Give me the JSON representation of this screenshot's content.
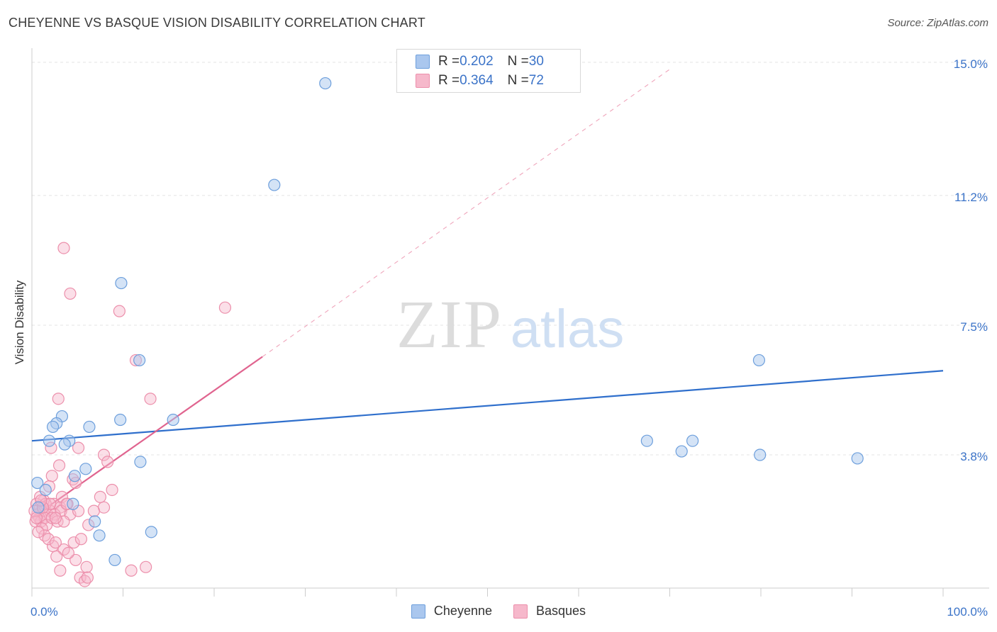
{
  "header": {
    "title": "CHEYENNE VS BASQUE VISION DISABILITY CORRELATION CHART",
    "source": "Source: ZipAtlas.com"
  },
  "watermark": {
    "zip": "ZIP",
    "atlas": "atlas"
  },
  "legend": {
    "rows": [
      {
        "r_label": "R = ",
        "r_value": "0.202",
        "n_label": "N = ",
        "n_value": "30"
      },
      {
        "r_label": "R = ",
        "r_value": "0.364",
        "n_label": "N = ",
        "n_value": "72"
      }
    ]
  },
  "bottom_legend": {
    "cheyenne": "Cheyenne",
    "basques": "Basques"
  },
  "colors": {
    "cheyenne_fill": "#aac7ee",
    "cheyenne_stroke": "#6d9fdc",
    "cheyenne_line": "#2f6fcc",
    "basques_fill": "#f6b8cb",
    "basques_stroke": "#ec8fab",
    "basques_line": "#e0648f",
    "tick_label": "#3b73c8",
    "grid": "#e3e3e3"
  },
  "chart_data": {
    "type": "scatter",
    "title": "CHEYENNE VS BASQUE VISION DISABILITY CORRELATION CHART",
    "xlabel": "",
    "ylabel": "Vision Disability",
    "xlim": [
      0,
      100
    ],
    "ylim": [
      0,
      15.2
    ],
    "x_tick_labels": [
      {
        "value": 0,
        "label": "0.0%"
      },
      {
        "value": 100,
        "label": "100.0%"
      }
    ],
    "y_tick_labels": [
      {
        "value": 15.0,
        "label": "15.0%"
      },
      {
        "value": 11.2,
        "label": "11.2%"
      },
      {
        "value": 7.5,
        "label": "7.5%"
      },
      {
        "value": 3.8,
        "label": "3.8%"
      }
    ],
    "series": [
      {
        "name": "Cheyenne",
        "R": 0.202,
        "N": 30,
        "points": [
          [
            32.2,
            14.4
          ],
          [
            26.6,
            11.5
          ],
          [
            9.8,
            8.7
          ],
          [
            11.8,
            6.5
          ],
          [
            15.5,
            4.8
          ],
          [
            9.7,
            4.8
          ],
          [
            3.3,
            4.9
          ],
          [
            2.7,
            4.7
          ],
          [
            2.3,
            4.6
          ],
          [
            6.3,
            4.6
          ],
          [
            1.9,
            4.2
          ],
          [
            4.1,
            4.2
          ],
          [
            3.6,
            4.1
          ],
          [
            11.9,
            3.6
          ],
          [
            5.9,
            3.4
          ],
          [
            4.7,
            3.2
          ],
          [
            0.6,
            3.0
          ],
          [
            1.5,
            2.8
          ],
          [
            4.5,
            2.4
          ],
          [
            6.9,
            1.9
          ],
          [
            7.4,
            1.5
          ],
          [
            13.1,
            1.6
          ],
          [
            9.1,
            0.8
          ],
          [
            67.5,
            4.2
          ],
          [
            72.5,
            4.2
          ],
          [
            71.3,
            3.9
          ],
          [
            90.6,
            3.7
          ],
          [
            79.9,
            3.8
          ],
          [
            79.8,
            6.5
          ],
          [
            0.7,
            2.3
          ]
        ],
        "trend": {
          "x0": 0,
          "y0": 4.2,
          "x1": 100,
          "y1": 6.2
        }
      },
      {
        "name": "Basques",
        "R": 0.364,
        "N": 72,
        "points": [
          [
            3.5,
            9.7
          ],
          [
            4.2,
            8.4
          ],
          [
            9.6,
            7.9
          ],
          [
            21.2,
            8.0
          ],
          [
            11.4,
            6.5
          ],
          [
            2.9,
            5.4
          ],
          [
            13.0,
            5.4
          ],
          [
            2.1,
            4.0
          ],
          [
            5.1,
            4.0
          ],
          [
            7.9,
            3.8
          ],
          [
            8.3,
            3.6
          ],
          [
            3.0,
            3.5
          ],
          [
            2.2,
            3.2
          ],
          [
            4.5,
            3.1
          ],
          [
            1.9,
            2.9
          ],
          [
            3.3,
            2.6
          ],
          [
            4.8,
            3.0
          ],
          [
            8.8,
            2.8
          ],
          [
            1.3,
            2.5
          ],
          [
            2.4,
            2.4
          ],
          [
            3.1,
            2.3
          ],
          [
            3.9,
            2.4
          ],
          [
            7.9,
            2.3
          ],
          [
            0.5,
            2.4
          ],
          [
            0.9,
            2.3
          ],
          [
            1.2,
            2.2
          ],
          [
            1.7,
            2.1
          ],
          [
            2.0,
            2.2
          ],
          [
            2.5,
            2.1
          ],
          [
            3.2,
            2.2
          ],
          [
            4.2,
            2.1
          ],
          [
            5.1,
            2.2
          ],
          [
            0.6,
            2.1
          ],
          [
            0.8,
            2.0
          ],
          [
            1.0,
            1.9
          ],
          [
            1.4,
            2.0
          ],
          [
            1.6,
            1.8
          ],
          [
            2.2,
            2.0
          ],
          [
            2.8,
            1.9
          ],
          [
            0.4,
            1.9
          ],
          [
            1.1,
            1.7
          ],
          [
            3.5,
            1.9
          ],
          [
            6.2,
            1.8
          ],
          [
            1.4,
            1.5
          ],
          [
            2.3,
            1.2
          ],
          [
            4.6,
            1.3
          ],
          [
            5.4,
            1.4
          ],
          [
            3.5,
            1.1
          ],
          [
            2.7,
            0.9
          ],
          [
            4.8,
            0.8
          ],
          [
            6.0,
            0.6
          ],
          [
            3.1,
            0.5
          ],
          [
            10.9,
            0.5
          ],
          [
            12.5,
            0.6
          ],
          [
            5.3,
            0.3
          ],
          [
            5.8,
            0.2
          ],
          [
            6.1,
            0.3
          ],
          [
            0.7,
            1.6
          ],
          [
            1.8,
            1.4
          ],
          [
            2.6,
            1.3
          ],
          [
            4.0,
            1.0
          ],
          [
            0.9,
            2.6
          ],
          [
            1.5,
            2.4
          ],
          [
            2.0,
            2.4
          ],
          [
            0.3,
            2.2
          ],
          [
            1.2,
            2.3
          ],
          [
            7.5,
            2.6
          ],
          [
            6.8,
            2.2
          ],
          [
            3.8,
            2.4
          ],
          [
            1.0,
            2.5
          ],
          [
            2.6,
            2.0
          ],
          [
            0.5,
            2.0
          ]
        ],
        "trend": {
          "x0": 0,
          "y0": 2.0,
          "x1": 25.3,
          "y1": 6.6
        },
        "trend_extension": {
          "x0": 25.3,
          "y0": 6.6,
          "x1": 70.0,
          "y1": 14.8
        }
      }
    ]
  }
}
